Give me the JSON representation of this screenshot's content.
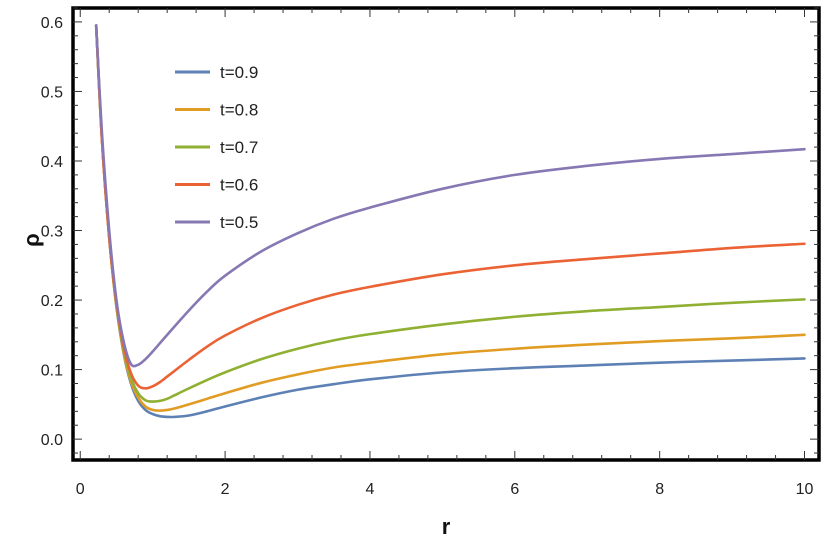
{
  "chart_data": {
    "type": "line",
    "title": "",
    "xlabel": "r",
    "ylabel": "ρ",
    "xlim": [
      -0.1,
      10.2
    ],
    "ylim": [
      -0.03,
      0.62
    ],
    "grid": false,
    "legend_position": "top-left",
    "x_ticks": [
      0,
      2,
      4,
      6,
      8,
      10
    ],
    "y_ticks": [
      0.0,
      0.1,
      0.2,
      0.3,
      0.4,
      0.5,
      0.6
    ],
    "x_tick_labels": [
      "0",
      "2",
      "4",
      "6",
      "8",
      "10"
    ],
    "y_tick_labels": [
      "0.0",
      "0.1",
      "0.2",
      "0.3",
      "0.4",
      "0.5",
      "0.6"
    ],
    "series": [
      {
        "name": "t=0.9",
        "color": "#5E81B5",
        "x": [
          0.22,
          0.3,
          0.4,
          0.5,
          0.6,
          0.7,
          0.8,
          0.9,
          1.0,
          1.1,
          1.2,
          1.3,
          1.5,
          1.75,
          2.0,
          2.5,
          3.0,
          3.5,
          4.0,
          5.0,
          6.0,
          7.0,
          8.0,
          9.0,
          10.0
        ],
        "y": [
          0.595,
          0.43,
          0.29,
          0.19,
          0.123,
          0.08,
          0.055,
          0.042,
          0.036,
          0.033,
          0.032,
          0.032,
          0.034,
          0.04,
          0.047,
          0.06,
          0.071,
          0.079,
          0.086,
          0.096,
          0.102,
          0.106,
          0.11,
          0.113,
          0.116
        ]
      },
      {
        "name": "t=0.8",
        "color": "#E19C24",
        "x": [
          0.22,
          0.3,
          0.4,
          0.5,
          0.6,
          0.7,
          0.8,
          0.9,
          1.0,
          1.1,
          1.2,
          1.3,
          1.5,
          1.75,
          2.0,
          2.5,
          3.0,
          3.5,
          4.0,
          5.0,
          6.0,
          7.0,
          8.0,
          9.0,
          10.0
        ],
        "y": [
          0.595,
          0.43,
          0.29,
          0.19,
          0.125,
          0.083,
          0.06,
          0.047,
          0.042,
          0.041,
          0.042,
          0.044,
          0.05,
          0.058,
          0.066,
          0.081,
          0.093,
          0.103,
          0.11,
          0.122,
          0.13,
          0.136,
          0.141,
          0.145,
          0.15
        ]
      },
      {
        "name": "t=0.7",
        "color": "#8FB032",
        "x": [
          0.22,
          0.3,
          0.4,
          0.5,
          0.6,
          0.7,
          0.8,
          0.9,
          1.0,
          1.1,
          1.2,
          1.3,
          1.5,
          1.75,
          2.0,
          2.5,
          3.0,
          3.5,
          4.0,
          5.0,
          6.0,
          7.0,
          8.0,
          9.0,
          10.0
        ],
        "y": [
          0.595,
          0.43,
          0.29,
          0.192,
          0.128,
          0.088,
          0.066,
          0.056,
          0.054,
          0.055,
          0.058,
          0.063,
          0.073,
          0.085,
          0.096,
          0.115,
          0.13,
          0.142,
          0.151,
          0.165,
          0.176,
          0.184,
          0.19,
          0.196,
          0.201
        ]
      },
      {
        "name": "t=0.6",
        "color": "#EB6235",
        "x": [
          0.22,
          0.3,
          0.4,
          0.5,
          0.6,
          0.7,
          0.8,
          0.9,
          1.0,
          1.1,
          1.2,
          1.3,
          1.5,
          1.75,
          2.0,
          2.5,
          3.0,
          3.5,
          4.0,
          5.0,
          6.0,
          7.0,
          8.0,
          9.0,
          10.0
        ],
        "y": [
          0.595,
          0.43,
          0.29,
          0.195,
          0.133,
          0.095,
          0.077,
          0.073,
          0.076,
          0.082,
          0.09,
          0.098,
          0.114,
          0.133,
          0.149,
          0.174,
          0.193,
          0.208,
          0.219,
          0.237,
          0.25,
          0.259,
          0.267,
          0.275,
          0.281
        ]
      },
      {
        "name": "t=0.5",
        "color": "#8778B3",
        "x": [
          0.22,
          0.3,
          0.4,
          0.5,
          0.6,
          0.7,
          0.8,
          0.9,
          1.0,
          1.2,
          1.5,
          1.75,
          2.0,
          2.5,
          3.0,
          3.5,
          4.0,
          5.0,
          6.0,
          7.0,
          8.0,
          9.0,
          10.0
        ],
        "y": [
          0.595,
          0.44,
          0.3,
          0.2,
          0.14,
          0.108,
          0.107,
          0.115,
          0.126,
          0.15,
          0.185,
          0.212,
          0.235,
          0.27,
          0.296,
          0.317,
          0.333,
          0.36,
          0.38,
          0.393,
          0.403,
          0.41,
          0.417
        ]
      }
    ]
  }
}
